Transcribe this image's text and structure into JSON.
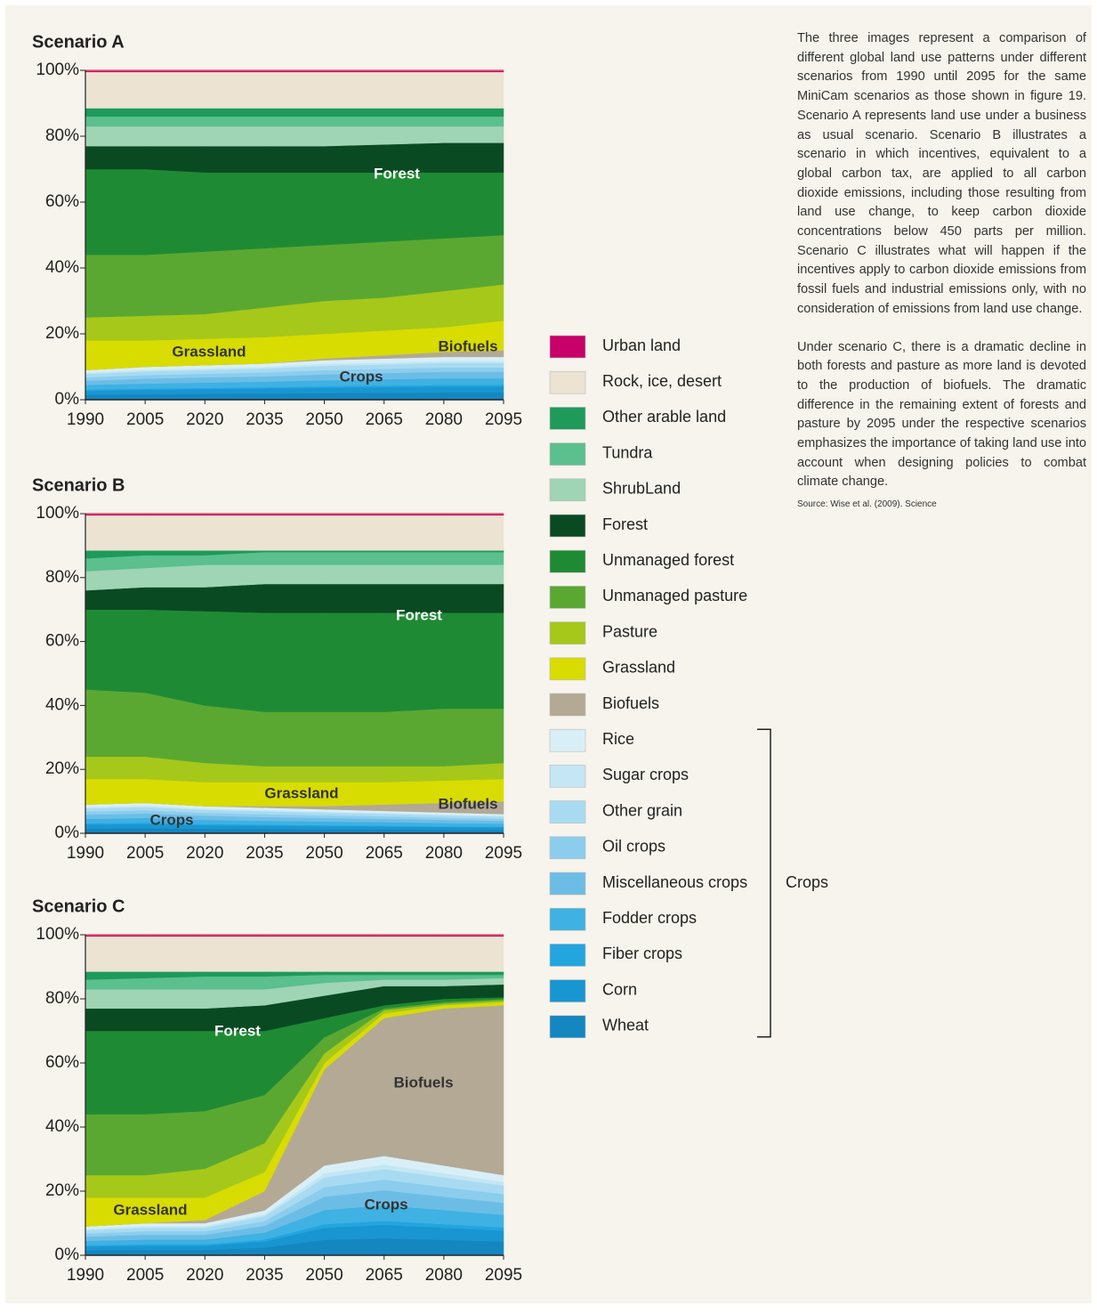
{
  "chart_data": [
    {
      "type": "stacked-area",
      "title": "Scenario A",
      "x": [
        1990,
        2005,
        2020,
        2035,
        2050,
        2065,
        2080,
        2095
      ],
      "xlim": [
        1990,
        2095
      ],
      "xticks": [
        1990,
        2005,
        2020,
        2035,
        2050,
        2065,
        2080,
        2095
      ],
      "ylim": [
        0,
        100
      ],
      "yticks": [
        {
          "value": 0,
          "label": "0%"
        },
        {
          "value": 20,
          "label": "20%"
        },
        {
          "value": 40,
          "label": "40%"
        },
        {
          "value": 60,
          "label": "60%"
        },
        {
          "value": 80,
          "label": "80%"
        },
        {
          "value": 100,
          "label": "100%"
        }
      ],
      "annotations": [
        "Forest",
        "Grassland",
        "Crops",
        "Biofuels"
      ],
      "series": [
        {
          "values": [
            1.5,
            1.7,
            1.8,
            1.9,
            2.0,
            2.1,
            2.2,
            2.2
          ]
        },
        {
          "values": [
            1.2,
            1.3,
            1.4,
            1.5,
            1.6,
            1.7,
            1.8,
            1.8
          ]
        },
        {
          "values": [
            0.4,
            0.4,
            0.4,
            0.4,
            0.5,
            0.5,
            0.5,
            0.5
          ]
        },
        {
          "values": [
            1.4,
            1.5,
            1.6,
            1.7,
            1.8,
            1.9,
            2.0,
            2.0
          ]
        },
        {
          "values": [
            1.3,
            1.5,
            1.6,
            1.6,
            1.8,
            1.9,
            2.0,
            2.0
          ]
        },
        {
          "values": [
            1.0,
            1.1,
            1.1,
            1.2,
            1.3,
            1.3,
            1.3,
            1.3
          ]
        },
        {
          "values": [
            1.0,
            1.1,
            1.1,
            1.2,
            1.3,
            1.3,
            1.4,
            1.4
          ]
        },
        {
          "values": [
            0.4,
            0.5,
            0.5,
            0.5,
            0.6,
            0.6,
            0.6,
            0.6
          ]
        },
        {
          "values": [
            0.8,
            0.9,
            1.0,
            1.0,
            1.1,
            1.2,
            1.2,
            1.2
          ]
        },
        {
          "values": [
            0,
            0,
            0,
            0,
            0.5,
            1,
            1.5,
            2
          ]
        },
        {
          "values": [
            9,
            8,
            8,
            8,
            7.5,
            7.5,
            7.5,
            9
          ]
        },
        {
          "values": [
            7,
            7.5,
            7.5,
            9,
            10,
            10,
            11,
            11
          ]
        },
        {
          "values": [
            19,
            18.5,
            19,
            18,
            17,
            17,
            16,
            15
          ]
        },
        {
          "values": [
            26,
            26,
            24,
            23,
            22,
            21,
            20,
            19
          ]
        },
        {
          "values": [
            7,
            7,
            8,
            8,
            8,
            8.5,
            9,
            9
          ]
        },
        {
          "values": [
            6,
            6,
            6,
            6,
            6,
            5.5,
            5,
            5
          ]
        },
        {
          "values": [
            3,
            3,
            3,
            3,
            3,
            3,
            3,
            3
          ]
        },
        {
          "values": [
            2.5,
            2.5,
            2.5,
            2.5,
            2.5,
            2.5,
            2.5,
            2.5
          ]
        },
        {
          "values": [
            11,
            11,
            11,
            11,
            11,
            11,
            11,
            11
          ]
        },
        {
          "values": [
            0.5,
            0.5,
            0.5,
            0.5,
            0.5,
            0.5,
            0.5,
            0.5
          ]
        }
      ]
    },
    {
      "type": "stacked-area",
      "title": "Scenario B",
      "x": [
        1990,
        2005,
        2020,
        2035,
        2050,
        2065,
        2080,
        2095
      ],
      "xlim": [
        1990,
        2095
      ],
      "xticks": [
        1990,
        2005,
        2020,
        2035,
        2050,
        2065,
        2080,
        2095
      ],
      "ylim": [
        0,
        100
      ],
      "yticks": [
        {
          "value": 0,
          "label": "0%"
        },
        {
          "value": 20,
          "label": "20%"
        },
        {
          "value": 40,
          "label": "40%"
        },
        {
          "value": 60,
          "label": "60%"
        },
        {
          "value": 80,
          "label": "80%"
        },
        {
          "value": 100,
          "label": "100%"
        }
      ],
      "annotations": [
        "Forest",
        "Grassland",
        "Crops",
        "Biofuels"
      ],
      "series": [
        {
          "values": [
            1.5,
            1.6,
            1.4,
            1.3,
            1.2,
            1.2,
            1.1,
            1.0
          ]
        },
        {
          "values": [
            1.2,
            1.3,
            1.1,
            1.1,
            1.0,
            0.9,
            0.8,
            0.8
          ]
        },
        {
          "values": [
            0.4,
            0.4,
            0.4,
            0.3,
            0.3,
            0.3,
            0.3,
            0.3
          ]
        },
        {
          "values": [
            1.4,
            1.5,
            1.3,
            1.2,
            1.2,
            1.1,
            1.0,
            0.9
          ]
        },
        {
          "values": [
            1.3,
            1.4,
            1.3,
            1.2,
            1.1,
            1.0,
            1.0,
            0.9
          ]
        },
        {
          "values": [
            1.0,
            1.0,
            0.9,
            0.9,
            0.8,
            0.8,
            0.7,
            0.7
          ]
        },
        {
          "values": [
            1.0,
            1.0,
            0.9,
            0.9,
            0.8,
            0.8,
            0.7,
            0.6
          ]
        },
        {
          "values": [
            0.4,
            0.4,
            0.4,
            0.4,
            0.4,
            0.3,
            0.3,
            0.3
          ]
        },
        {
          "values": [
            0.8,
            0.9,
            0.8,
            0.7,
            0.7,
            0.6,
            0.6,
            0.5
          ]
        },
        {
          "values": [
            0,
            0,
            0,
            0.5,
            1,
            2,
            3,
            4
          ]
        },
        {
          "values": [
            8,
            7.5,
            7.5,
            7.5,
            7.5,
            7,
            7,
            7
          ]
        },
        {
          "values": [
            7,
            7,
            6,
            5,
            5,
            5,
            4.5,
            5
          ]
        },
        {
          "values": [
            21,
            20,
            18,
            17,
            17,
            17,
            18,
            17
          ]
        },
        {
          "values": [
            25,
            26,
            29.5,
            31,
            31,
            31,
            30,
            30
          ]
        },
        {
          "values": [
            6,
            7,
            7.5,
            9,
            9,
            9,
            9,
            9
          ]
        },
        {
          "values": [
            6,
            6,
            7,
            6,
            6,
            6,
            6,
            6
          ]
        },
        {
          "values": [
            4,
            4,
            3,
            4,
            4,
            4,
            4,
            4
          ]
        },
        {
          "values": [
            2.5,
            1.5,
            1.5,
            0.5,
            0.5,
            0.5,
            0.5,
            0.5
          ]
        },
        {
          "values": [
            11,
            11,
            11,
            11,
            11,
            11,
            11,
            11
          ]
        },
        {
          "values": [
            0.5,
            0.5,
            0.5,
            0.5,
            0.5,
            0.5,
            0.5,
            0.5
          ]
        }
      ]
    },
    {
      "type": "stacked-area",
      "title": "Scenario C",
      "x": [
        1990,
        2005,
        2020,
        2035,
        2050,
        2065,
        2080,
        2095
      ],
      "xlim": [
        1990,
        2095
      ],
      "xticks": [
        1990,
        2005,
        2020,
        2035,
        2050,
        2065,
        2080,
        2095
      ],
      "ylim": [
        0,
        100
      ],
      "yticks": [
        {
          "value": 0,
          "label": "0%"
        },
        {
          "value": 20,
          "label": "20%"
        },
        {
          "value": 40,
          "label": "40%"
        },
        {
          "value": 60,
          "label": "60%"
        },
        {
          "value": 80,
          "label": "80%"
        },
        {
          "value": 100,
          "label": "100%"
        }
      ],
      "annotations": [
        "Forest",
        "Grassland",
        "Crops",
        "Biofuels"
      ],
      "series": [
        {
          "values": [
            1.5,
            1.7,
            1.7,
            2.4,
            4.8,
            5.3,
            4.8,
            4.3
          ]
        },
        {
          "values": [
            1.2,
            1.3,
            1.3,
            1.9,
            3.8,
            4.2,
            3.8,
            3.4
          ]
        },
        {
          "values": [
            0.4,
            0.4,
            0.4,
            0.6,
            1.1,
            1.2,
            1.1,
            1.0
          ]
        },
        {
          "values": [
            1.4,
            1.5,
            1.5,
            2.2,
            4.4,
            4.9,
            4.4,
            3.9
          ]
        },
        {
          "values": [
            1.3,
            1.5,
            1.5,
            2.1,
            4.2,
            4.7,
            4.2,
            3.8
          ]
        },
        {
          "values": [
            1.0,
            1.1,
            1.1,
            1.5,
            3.0,
            3.3,
            3.0,
            2.7
          ]
        },
        {
          "values": [
            1.0,
            1.1,
            1.1,
            1.5,
            3.0,
            3.3,
            3.0,
            2.7
          ]
        },
        {
          "values": [
            0.4,
            0.5,
            0.5,
            0.6,
            1.3,
            1.4,
            1.3,
            1.1
          ]
        },
        {
          "values": [
            0.8,
            0.9,
            0.9,
            1.2,
            2.4,
            2.7,
            2.4,
            2.1
          ]
        },
        {
          "values": [
            0,
            0,
            1,
            6,
            30,
            43,
            49,
            53
          ]
        },
        {
          "values": [
            9,
            8,
            7,
            6,
            2,
            1.5,
            1,
            1
          ]
        },
        {
          "values": [
            7,
            7,
            9,
            9,
            3,
            1,
            0.5,
            0.5
          ]
        },
        {
          "values": [
            19,
            19,
            18,
            15,
            5,
            0.5,
            0.5,
            0.5
          ]
        },
        {
          "values": [
            26,
            26,
            25,
            20,
            6,
            1,
            1,
            0.5
          ]
        },
        {
          "values": [
            7,
            7,
            7,
            8,
            7,
            6,
            4,
            4
          ]
        },
        {
          "values": [
            6,
            6,
            6,
            5,
            4,
            2,
            2,
            2
          ]
        },
        {
          "values": [
            3,
            3.5,
            4,
            4,
            2.5,
            1.5,
            1.5,
            1
          ]
        },
        {
          "values": [
            2.5,
            2,
            1.5,
            1.5,
            1,
            1,
            1,
            1
          ]
        },
        {
          "values": [
            11,
            11,
            11,
            11,
            11,
            11,
            11,
            11
          ]
        },
        {
          "values": [
            0.5,
            0.5,
            0.5,
            0.5,
            0.5,
            0.5,
            0.5,
            0.5
          ]
        }
      ]
    }
  ],
  "legend": {
    "group_label": "Crops",
    "items": [
      {
        "name": "Wheat",
        "color": "#1486c0"
      },
      {
        "name": "Corn",
        "color": "#1896d2"
      },
      {
        "name": "Fiber crops",
        "color": "#23a5de"
      },
      {
        "name": "Fodder crops",
        "color": "#3fb1e3"
      },
      {
        "name": "Miscellaneous crops",
        "color": "#6cbde6"
      },
      {
        "name": "Oil crops",
        "color": "#8ccdee"
      },
      {
        "name": "Other grain",
        "color": "#a8dbf2"
      },
      {
        "name": "Sugar crops",
        "color": "#c4e6f5"
      },
      {
        "name": "Rice",
        "color": "#d9eff7"
      },
      {
        "name": "Biofuels",
        "color": "#b3a995"
      },
      {
        "name": "Grassland",
        "color": "#d8dc00"
      },
      {
        "name": "Pasture",
        "color": "#a6c81a"
      },
      {
        "name": "Unmanaged pasture",
        "color": "#5aa832"
      },
      {
        "name": "Unmanaged forest",
        "color": "#1f8a34"
      },
      {
        "name": "Forest",
        "color": "#0a4a23"
      },
      {
        "name": "ShrubLand",
        "color": "#9fd4b5"
      },
      {
        "name": "Tundra",
        "color": "#5bbf8e"
      },
      {
        "name": "Other arable land",
        "color": "#1e9a5a"
      },
      {
        "name": "Rock, ice, desert",
        "color": "#ece3d3"
      },
      {
        "name": "Urban land",
        "color": "#c8006a"
      }
    ]
  },
  "description": [
    "The three images represent a comparison of different global land use patterns under different scenarios from 1990 until 2095 for the same MiniCam scenarios as those shown in figure 19. Scenario A represents land use under a business as usual scenario. Scenario B illustrates a scenario in which incentives, equivalent to a global carbon tax, are applied to all carbon dioxide emissions, including those resulting from land use change, to keep carbon dioxide concentrations below 450 parts per million. Scenario C illustrates what will happen if the incentives apply to carbon dioxide emissions from fossil fuels and industrial emissions only, with no consideration of emissions from land use change.",
    "Under scenario C, there is a dramatic decline in both forests and pasture as more land is devoted to the production of biofuels. The dramatic difference in the remaining extent of forests and pasture by 2095 under the respective scenarios emphasizes the importance of taking land use into account when designing policies to combat climate change."
  ],
  "source": "Source: Wise et al. (2009). Science"
}
